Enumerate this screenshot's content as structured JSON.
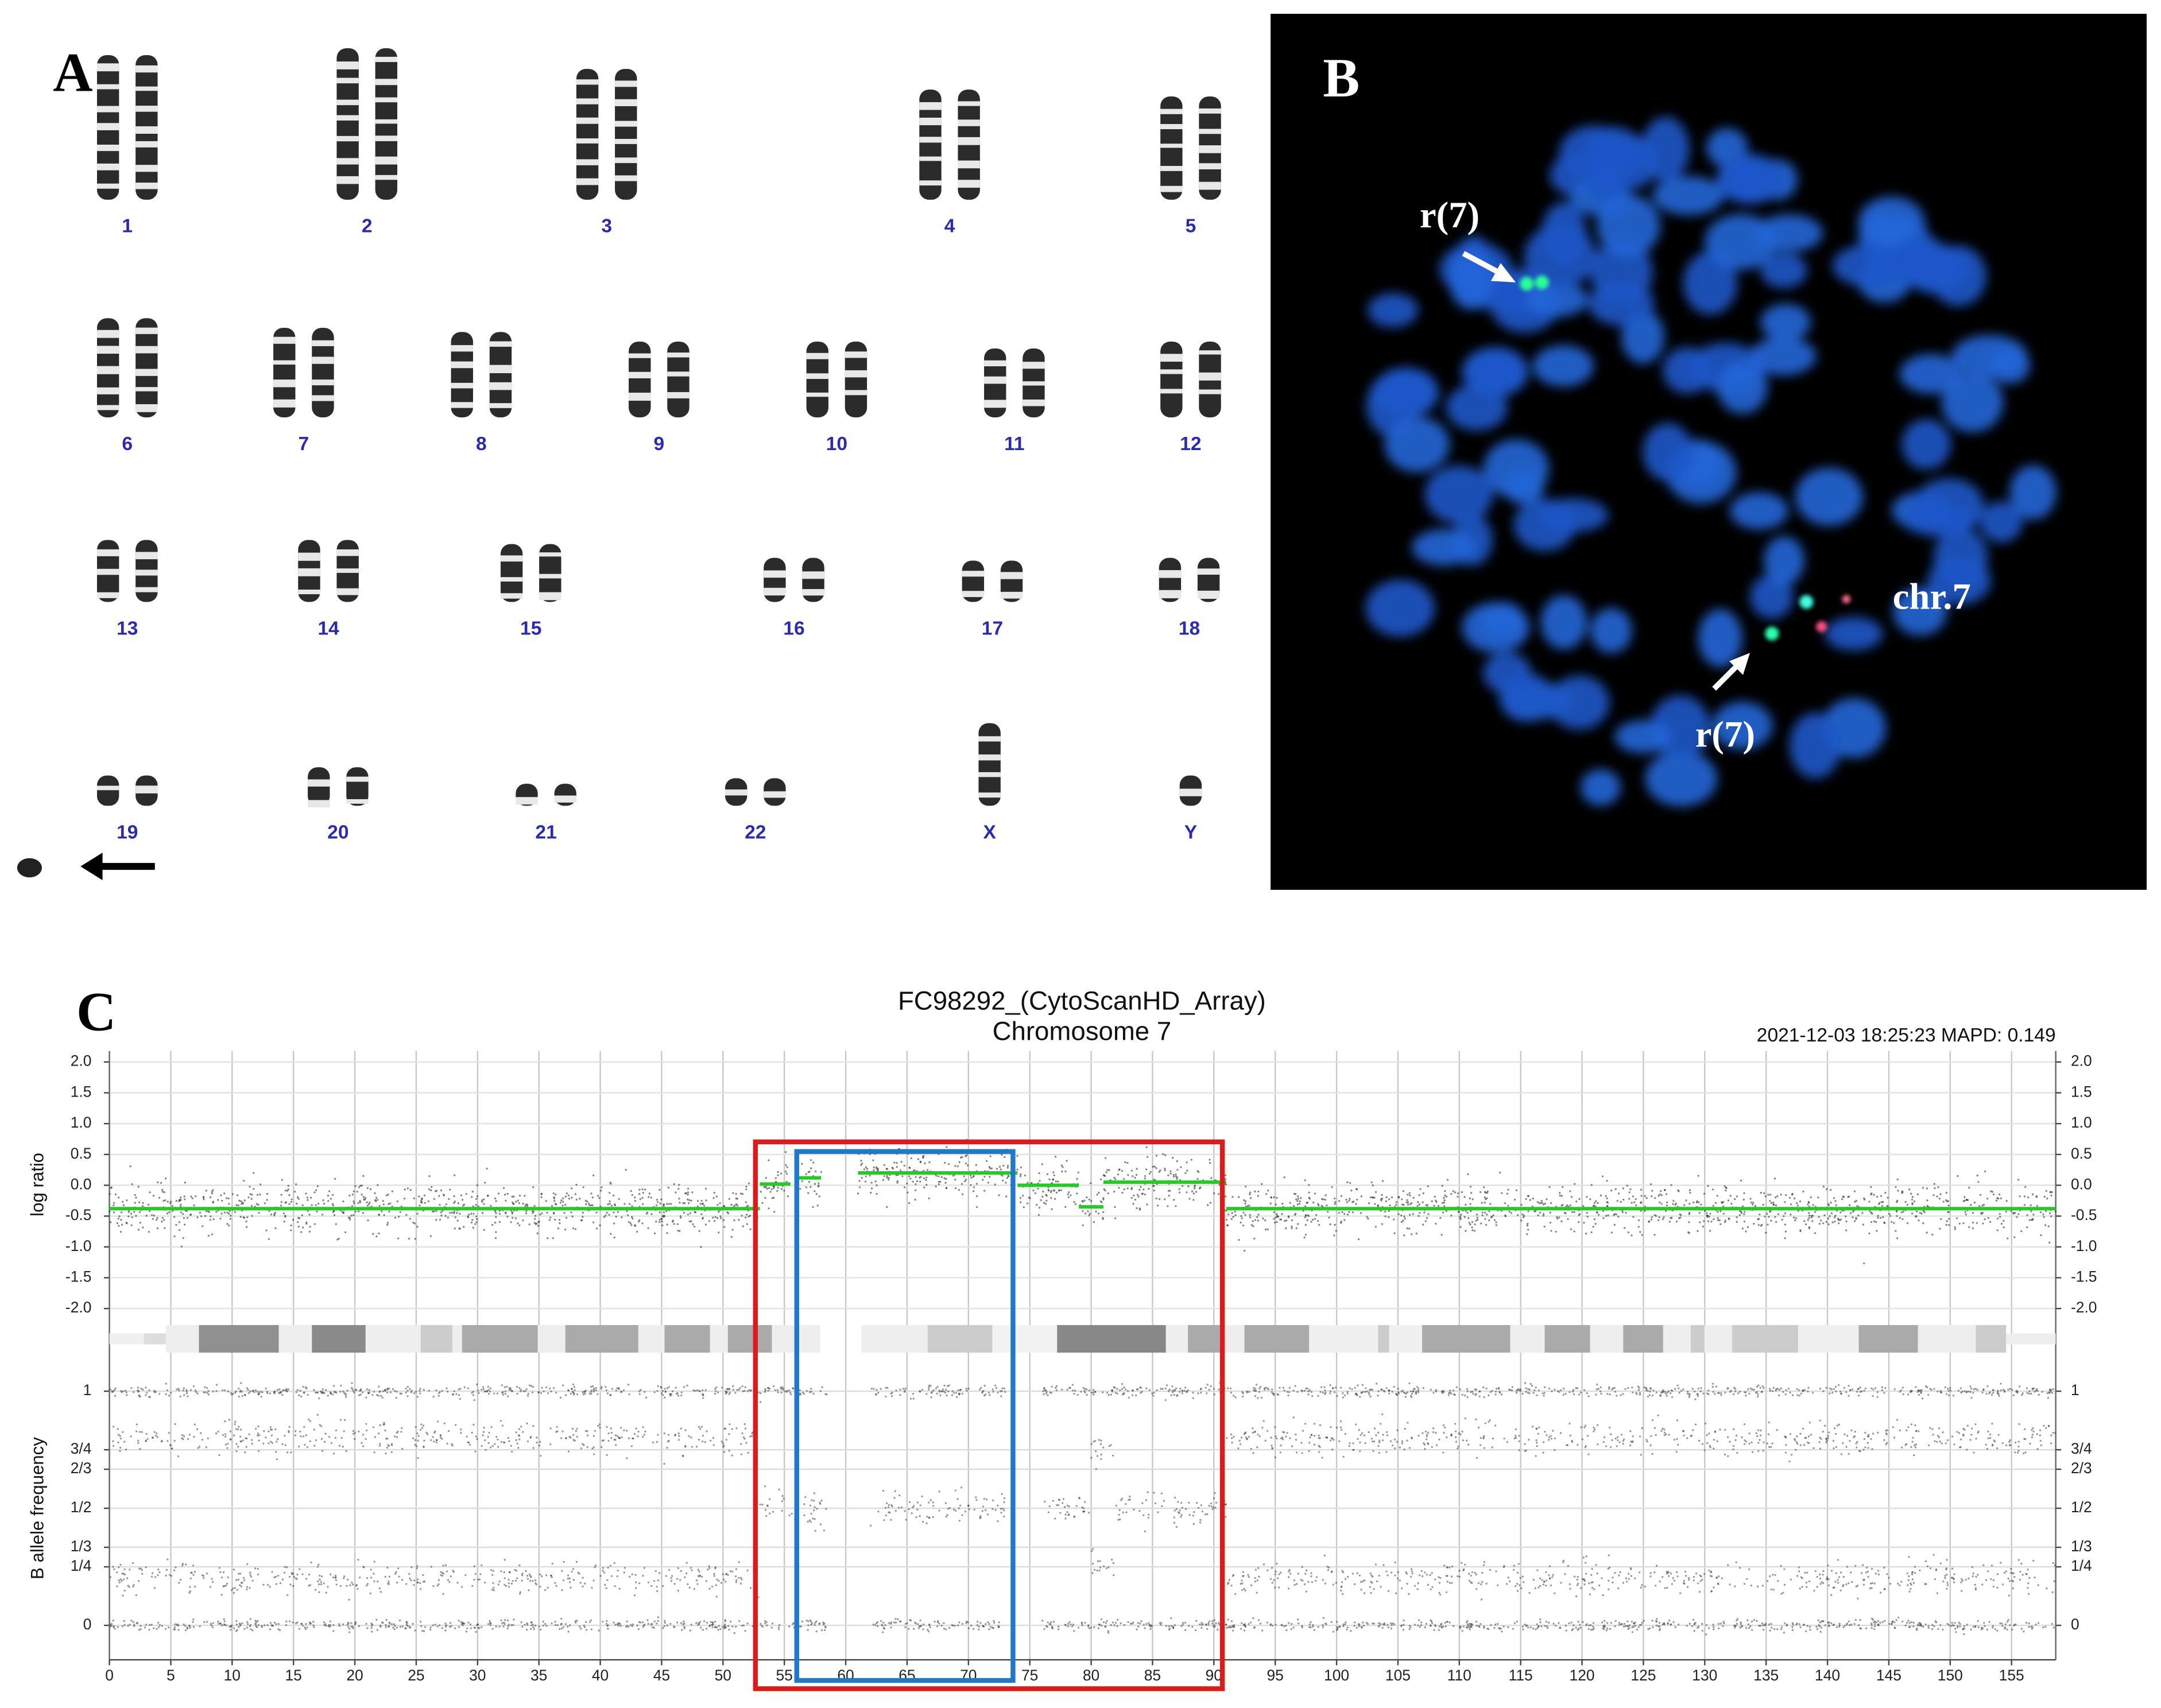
{
  "panel_a": {
    "label": "A",
    "chromosomes": [
      "1",
      "2",
      "3",
      "4",
      "5",
      "6",
      "7",
      "8",
      "9",
      "10",
      "11",
      "12",
      "13",
      "14",
      "15",
      "16",
      "17",
      "18",
      "19",
      "20",
      "21",
      "22",
      "X",
      "Y"
    ]
  },
  "panel_b": {
    "label": "B",
    "annotations": [
      "r(7)",
      "r(7)",
      "chr.7"
    ]
  },
  "chart_data": {
    "type": "copy-number",
    "panel_label": "C",
    "title": "FC98292_(CytoScanHD_Array)",
    "subtitle": "Chromosome 7",
    "run_info": "2021-12-03 18:25:23  MAPD: 0.149",
    "xlim": [
      0,
      158.6
    ],
    "xticks": [
      0,
      5,
      10,
      15,
      20,
      25,
      30,
      35,
      40,
      45,
      50,
      55,
      60,
      65,
      70,
      75,
      80,
      85,
      90,
      95,
      100,
      105,
      110,
      115,
      120,
      125,
      130,
      135,
      140,
      145,
      150,
      155
    ],
    "ylabel": "log ratio",
    "ylim": [
      -2,
      2
    ],
    "yticks": [
      {
        "value": 2,
        "label": "2.0"
      },
      {
        "value": 1.5,
        "label": "1.5"
      },
      {
        "value": 1,
        "label": "1.0"
      },
      {
        "value": 0.5,
        "label": "0.5"
      },
      {
        "value": 0,
        "label": "0.0"
      },
      {
        "value": -0.5,
        "label": "-0.5"
      },
      {
        "value": -1,
        "label": "-1.0"
      },
      {
        "value": -1.5,
        "label": "-1.5"
      },
      {
        "value": -2,
        "label": "-2.0"
      }
    ],
    "y2label": "B allele frequency",
    "y2lim": [
      0,
      1
    ],
    "y2ticks": [
      1,
      {
        "value": 0.75,
        "label": "3/4"
      },
      {
        "value": 0.6667,
        "label": "2/3"
      },
      {
        "value": 0.5,
        "label": "1/2"
      },
      {
        "value": 0.3333,
        "label": "1/3"
      },
      {
        "value": 0.25,
        "label": "1/4"
      },
      0
    ],
    "grid": true,
    "segment_color": "#22cc22",
    "segments": [
      {
        "start": 0,
        "end": 53,
        "value": -0.38
      },
      {
        "start": 53,
        "end": 55.5,
        "value": 0.02
      },
      {
        "start": 56,
        "end": 58,
        "value": 0.12
      },
      {
        "start": 61,
        "end": 74,
        "value": 0.2
      },
      {
        "start": 74,
        "end": 79,
        "value": 0.0
      },
      {
        "start": 79,
        "end": 81,
        "value": -0.35
      },
      {
        "start": 81,
        "end": 91,
        "value": 0.05
      },
      {
        "start": 91,
        "end": 158.6,
        "value": -0.38
      }
    ],
    "baf_clusters": [
      {
        "start": 0,
        "end": 53,
        "values": [
          0,
          0.2,
          0.8,
          1
        ]
      },
      {
        "start": 53,
        "end": 58.5,
        "values": [
          0,
          0.5,
          1
        ]
      },
      {
        "start": 62,
        "end": 73,
        "values": [
          0,
          0.5,
          1
        ]
      },
      {
        "start": 76,
        "end": 80,
        "values": [
          0,
          0.5,
          1
        ]
      },
      {
        "start": 80,
        "end": 82,
        "values": [
          0,
          0.25,
          0.75,
          1
        ]
      },
      {
        "start": 82,
        "end": 91,
        "values": [
          0,
          0.5,
          1
        ]
      },
      {
        "start": 91,
        "end": 158.6,
        "values": [
          0,
          0.2,
          0.8,
          1
        ]
      }
    ]
  }
}
